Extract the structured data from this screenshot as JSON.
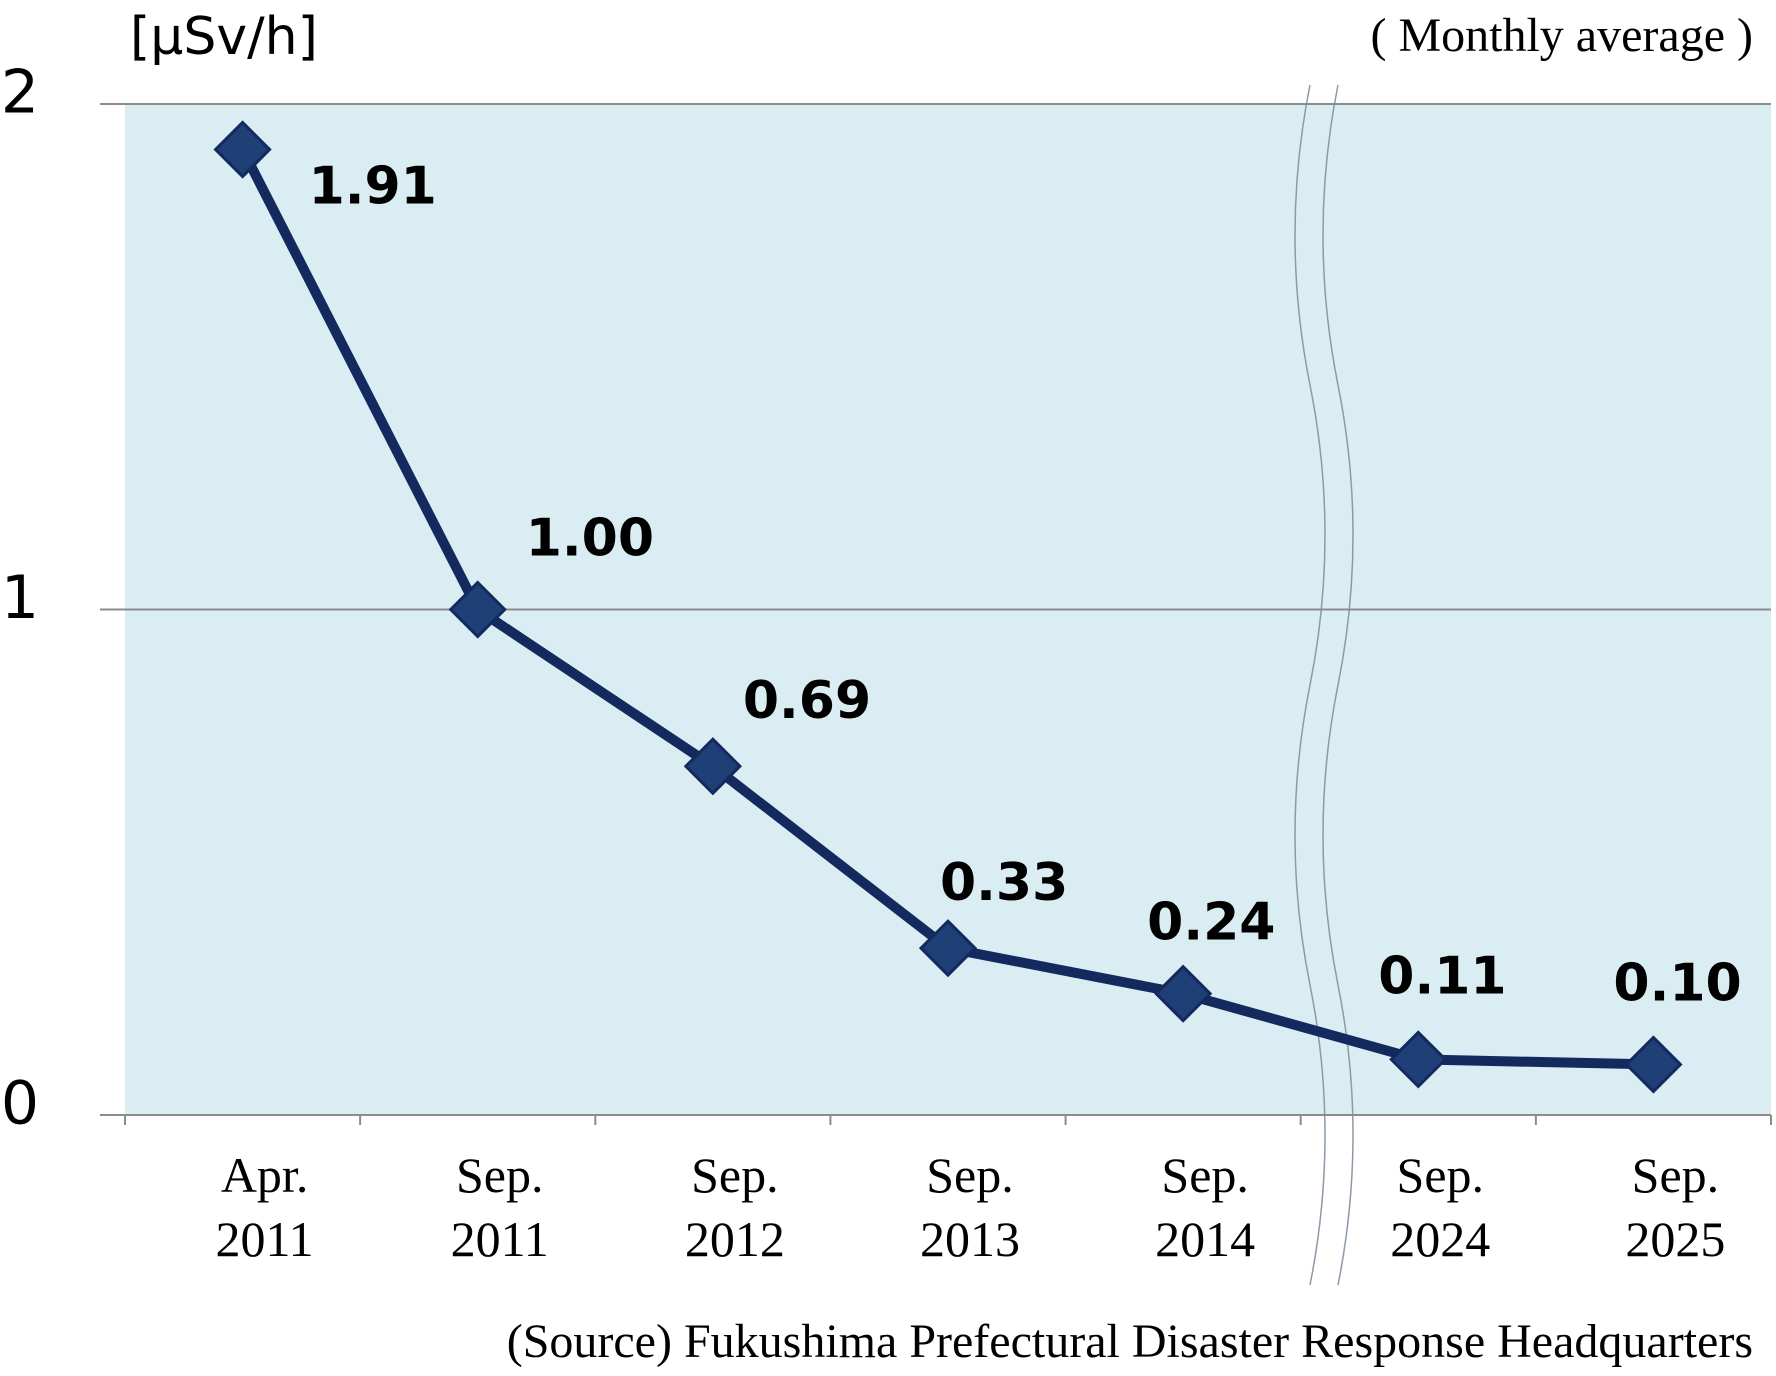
{
  "chart_data": {
    "type": "line",
    "y_label": "[μSv/h]",
    "annotation": "( Monthly average )",
    "source": "(Source) Fukushima Prefectural Disaster Response Headquarters",
    "categories": [
      "Apr. 2011",
      "Sep. 2011",
      "Sep. 2012",
      "Sep. 2013",
      "Sep. 2014",
      "Sep. 2024",
      "Sep. 2025"
    ],
    "values": [
      1.91,
      1.0,
      0.69,
      0.33,
      0.24,
      0.11,
      0.1
    ],
    "value_labels": [
      "1.91",
      "1.00",
      "0.69",
      "0.33",
      "0.24",
      "0.11",
      "0.10"
    ],
    "color": "#14295e",
    "marker_color": "#1f3f77",
    "background": "#daedf3",
    "ylim": [
      0,
      2
    ],
    "yticks": [
      0,
      1,
      2
    ],
    "grid": true
  }
}
